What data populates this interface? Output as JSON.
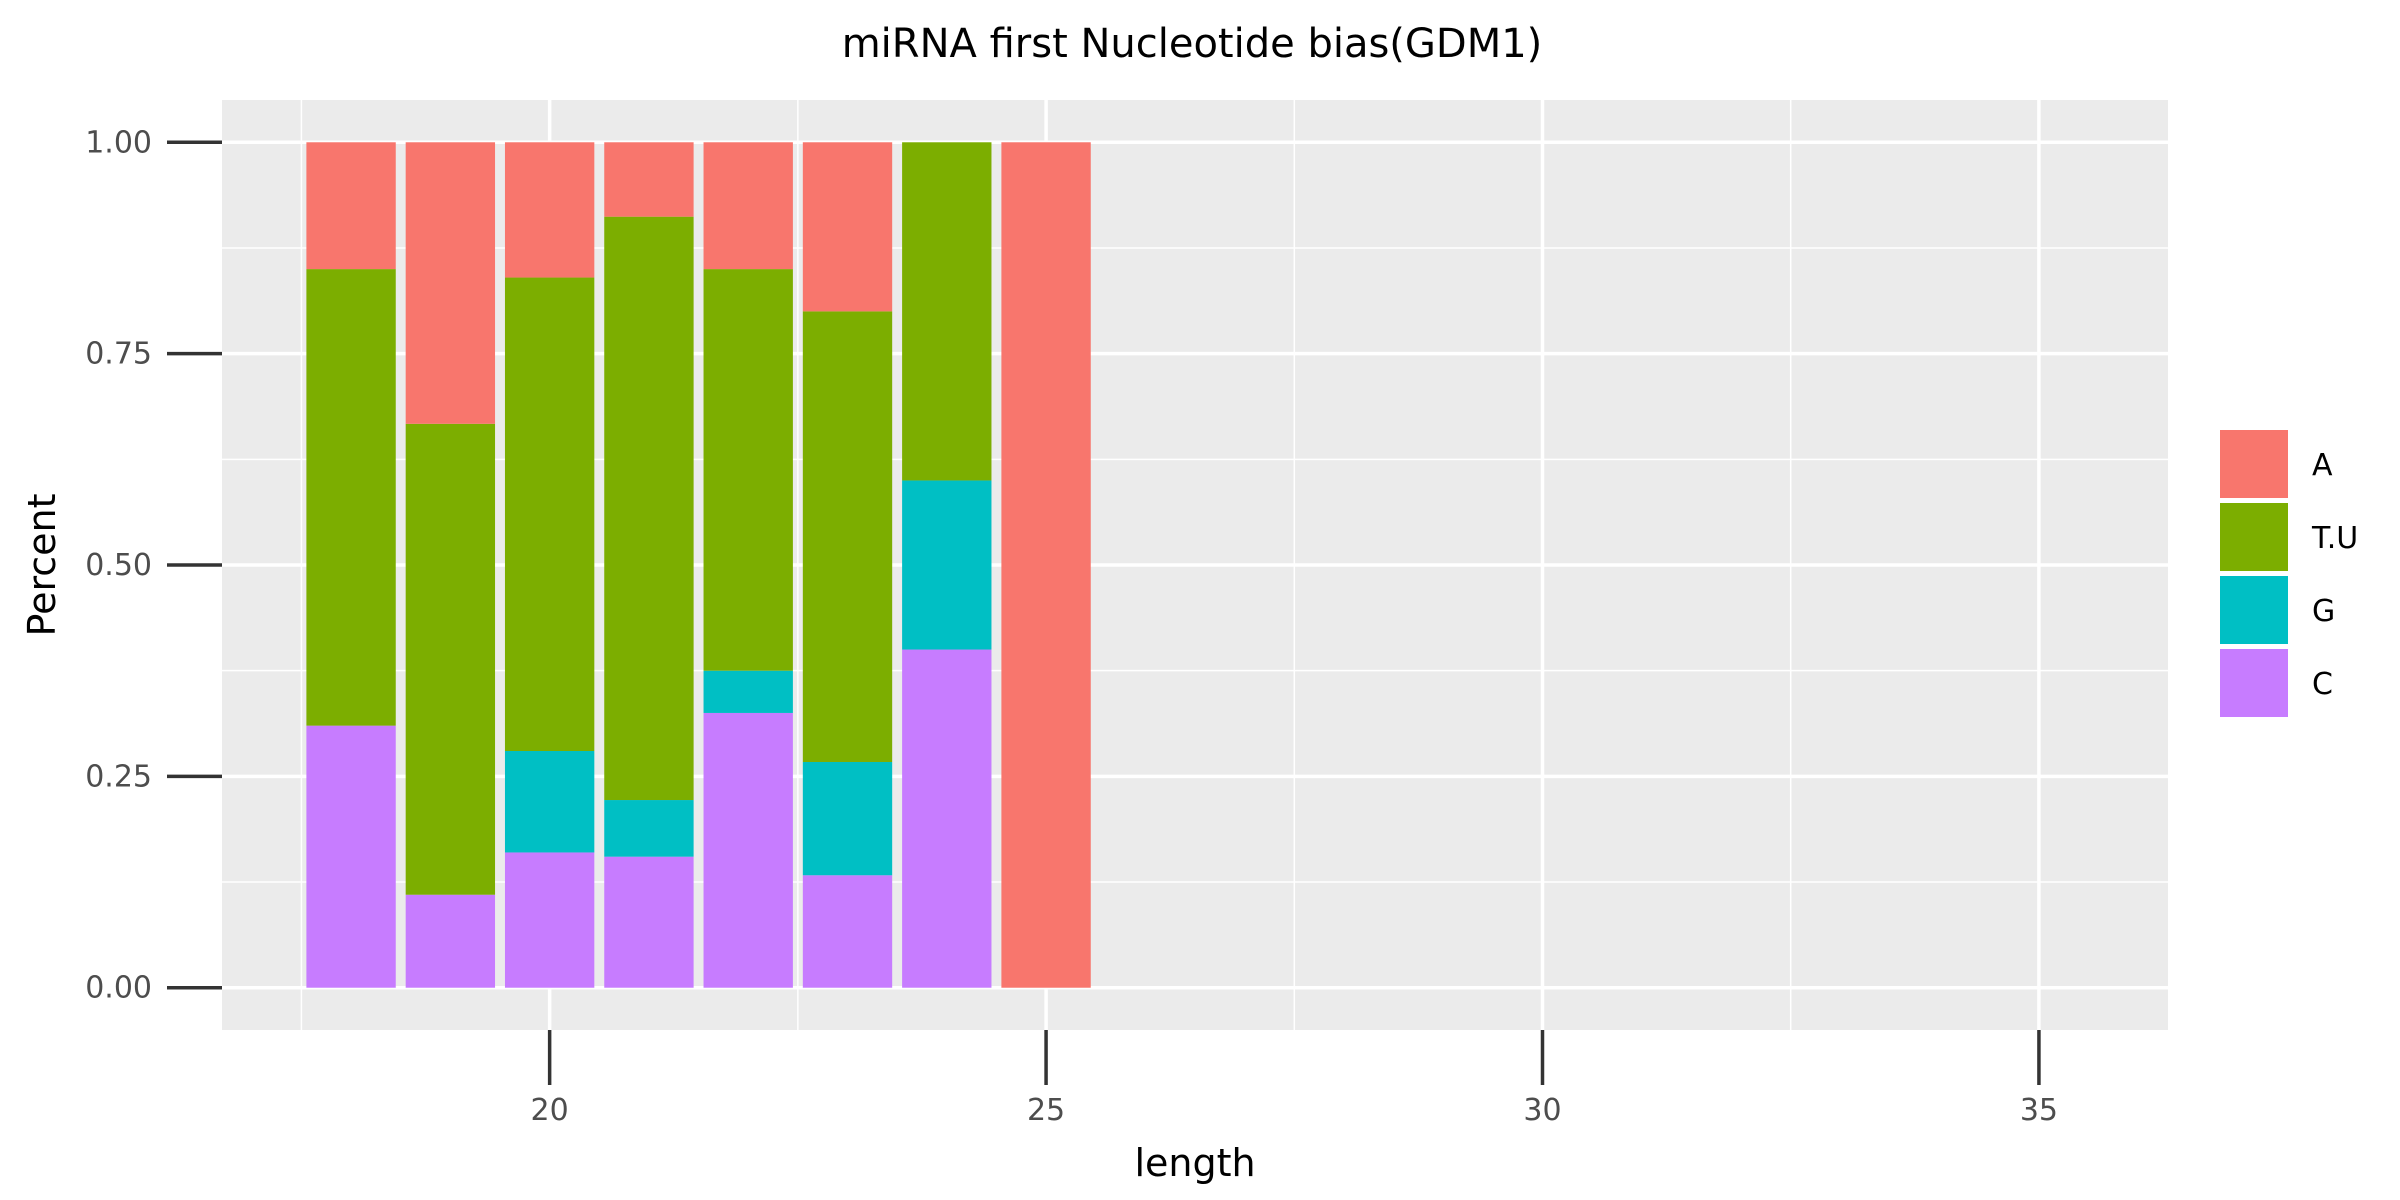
{
  "chart_data": {
    "type": "bar",
    "stacked": true,
    "title": "miRNA first Nucleotide bias(GDM1)",
    "xlabel": "length",
    "ylabel": "Percent",
    "xlim": [
      16.7,
      36.3
    ],
    "ylim": [
      -0.05,
      1.05
    ],
    "x_ticks": [
      20,
      25,
      30,
      35
    ],
    "y_ticks": [
      0,
      0.25,
      0.5,
      0.75,
      1.0
    ],
    "y_tick_labels": [
      "0.00",
      "0.25",
      "0.50",
      "0.75",
      "1.00"
    ],
    "grid": true,
    "legend_position": "right",
    "categories": [
      18,
      19,
      20,
      21,
      22,
      23,
      24,
      25
    ],
    "series": [
      {
        "name": "C",
        "color": "#C77CFF",
        "values": [
          0.31,
          0.11,
          0.16,
          0.155,
          0.325,
          0.133,
          0.4,
          0.0
        ]
      },
      {
        "name": "G",
        "color": "#00BFC4",
        "values": [
          0.0,
          0.0,
          0.12,
          0.067,
          0.05,
          0.134,
          0.2,
          0.0
        ]
      },
      {
        "name": "T.U",
        "color": "#7CAE00",
        "values": [
          0.54,
          0.557,
          0.56,
          0.69,
          0.475,
          0.533,
          0.4,
          0.0
        ]
      },
      {
        "name": "A",
        "color": "#F8766D",
        "values": [
          0.15,
          0.333,
          0.16,
          0.088,
          0.15,
          0.2,
          0.0,
          1.0
        ]
      }
    ],
    "legend_order": [
      "A",
      "T.U",
      "G",
      "C"
    ],
    "colors": {
      "panel_background": "#EBEBEB",
      "grid_major": "#FFFFFF",
      "grid_minor": "#F5F5F5",
      "tick_mark": "#333333"
    }
  }
}
